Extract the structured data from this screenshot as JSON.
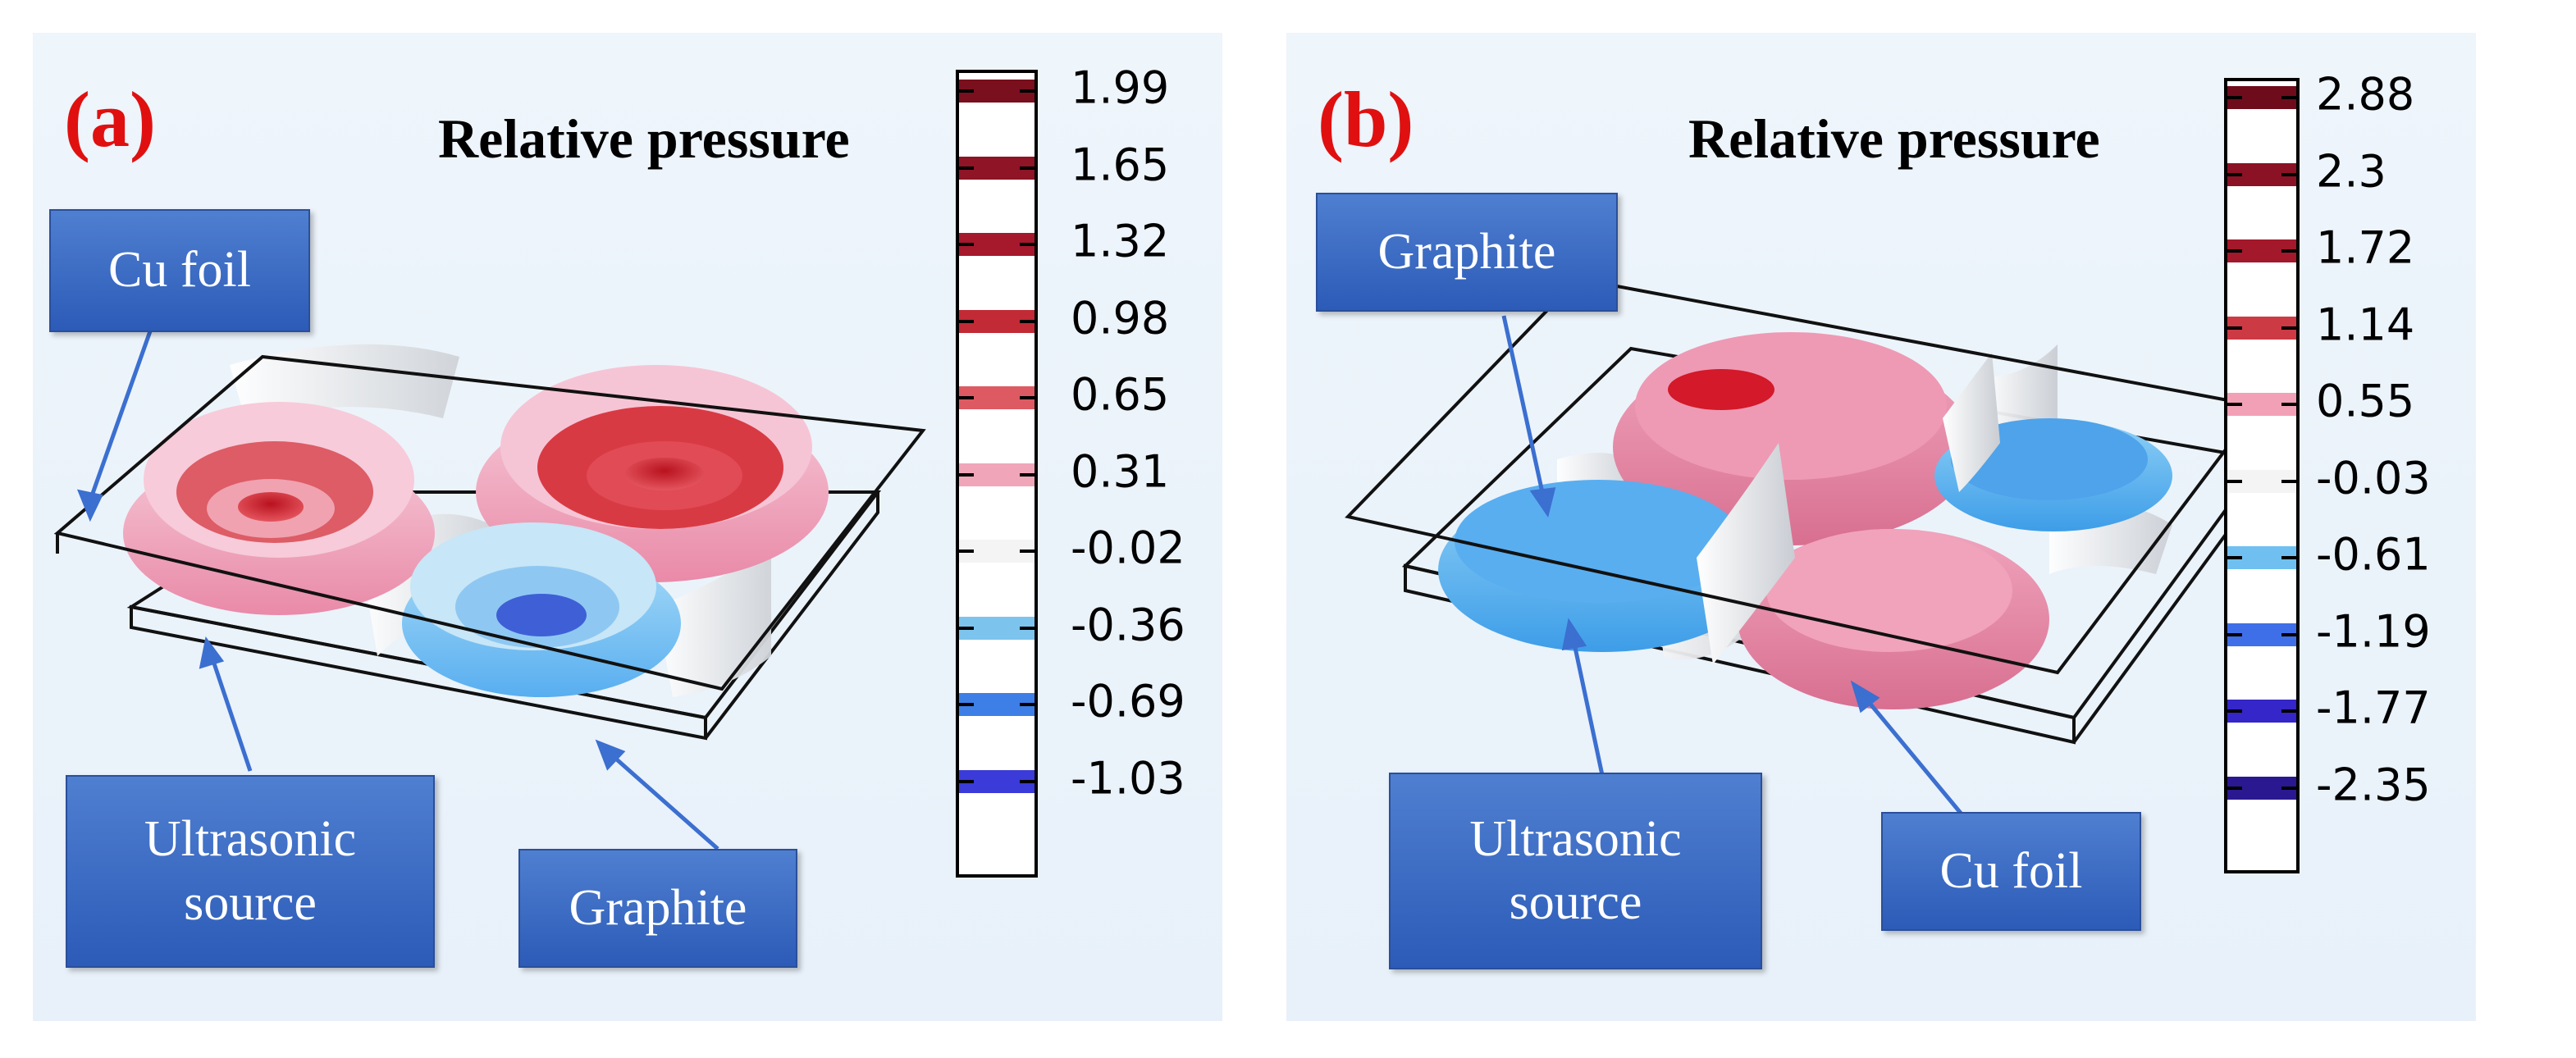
{
  "panels": [
    {
      "id": "a",
      "letter": "(a)",
      "title": "Relative pressure",
      "colorbar": {
        "ticks": [
          "1.99",
          "1.65",
          "1.32",
          "0.98",
          "0.65",
          "0.31",
          "-0.02",
          "-0.36",
          "-0.69",
          "-1.03"
        ],
        "colors": [
          "#7a0f1e",
          "#8e1426",
          "#a6182c",
          "#c22a36",
          "#dd5a63",
          "#f0a6b8",
          "#f4f4f4",
          "#7cc4ee",
          "#3d7fe6",
          "#3a3bd8"
        ]
      },
      "labels": {
        "cu_foil": "Cu foil",
        "ultrasonic_source": [
          "Ultrasonic",
          "source"
        ],
        "graphite": "Graphite"
      }
    },
    {
      "id": "b",
      "letter": "(b)",
      "title": "Relative pressure",
      "colorbar": {
        "ticks": [
          "2.88",
          "2.3",
          "1.72",
          "1.14",
          "0.55",
          "-0.03",
          "-0.61",
          "-1.19",
          "-1.77",
          "-2.35"
        ],
        "colors": [
          "#6e0c1c",
          "#8a1224",
          "#a3182a",
          "#cc3a44",
          "#f2a0b6",
          "#f4f4f4",
          "#6fc0f0",
          "#3f6fe8",
          "#3426c8",
          "#2a1890"
        ]
      },
      "labels": {
        "graphite": "Graphite",
        "ultrasonic_source": [
          "Ultrasonic",
          "source"
        ],
        "cu_foil": "Cu foil"
      }
    }
  ]
}
